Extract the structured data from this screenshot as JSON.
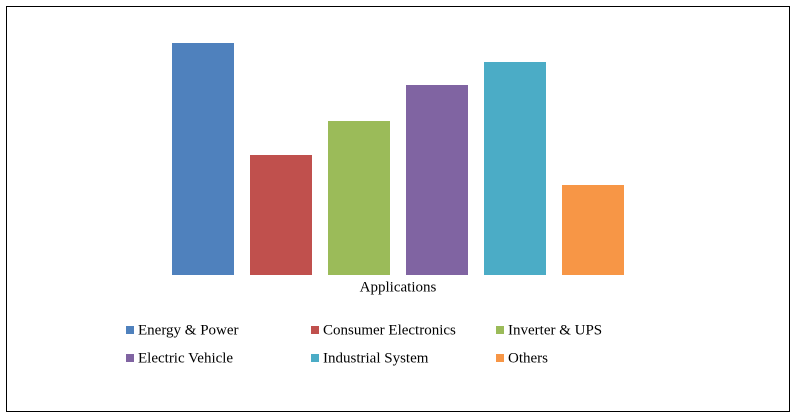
{
  "chart_data": {
    "type": "bar",
    "x_label": "Applications",
    "series": [
      {
        "name": "Energy & Power",
        "color": "#4f81bd",
        "values": [
          232
        ]
      },
      {
        "name": "Consumer Electronics",
        "color": "#c0504d",
        "values": [
          120
        ]
      },
      {
        "name": "Inverter & UPS",
        "color": "#9bbb59",
        "values": [
          154
        ]
      },
      {
        "name": "Electric Vehicle",
        "color": "#8064a2",
        "values": [
          190
        ]
      },
      {
        "name": "Industrial System",
        "color": "#4bacc6",
        "values": [
          213
        ]
      },
      {
        "name": "Others",
        "color": "#f79646",
        "values": [
          90
        ]
      }
    ]
  }
}
